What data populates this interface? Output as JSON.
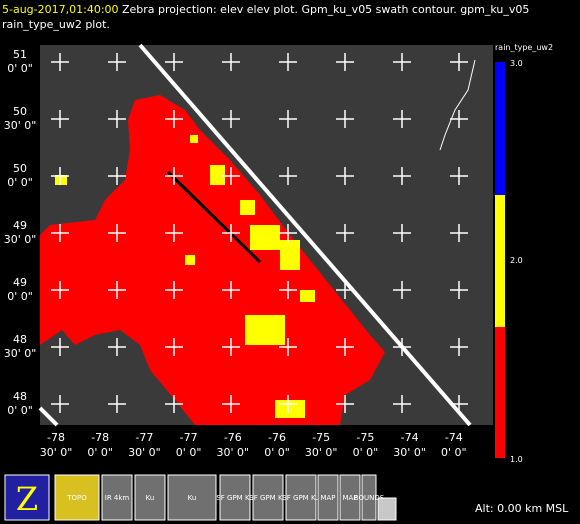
{
  "header": {
    "time": "5-aug-2017,01:40:00",
    "text": "Zebra projection: elev elev  plot.  Gpm_ku_v05 swath contour.  gpm_ku_v05",
    "line2": "rain_type_uw2  plot."
  },
  "map": {
    "lat_labels": [
      [
        "51",
        "0' 0\""
      ],
      [
        "50",
        "30' 0\""
      ],
      [
        "50",
        "0' 0\""
      ],
      [
        "49",
        "30' 0\""
      ],
      [
        "49",
        "0' 0\""
      ],
      [
        "48",
        "30' 0\""
      ],
      [
        "48",
        "0' 0\""
      ]
    ],
    "lon_labels": [
      [
        "-78",
        "30' 0\""
      ],
      [
        "-78",
        "0' 0\""
      ],
      [
        "-77",
        "30' 0\""
      ],
      [
        "-77",
        "0' 0\""
      ],
      [
        "-76",
        "30' 0\""
      ],
      [
        "-76",
        "0' 0\""
      ],
      [
        "-75",
        "30' 0\""
      ],
      [
        "-75",
        "0' 0\""
      ],
      [
        "-74",
        "30' 0\""
      ],
      [
        "-74",
        "0' 0\""
      ]
    ]
  },
  "colorbar": {
    "title": "rain_type_uw2",
    "labels": [
      "3.0",
      "2.0",
      "1.0"
    ]
  },
  "toolbar": [
    "Z",
    "TOPO",
    "IR 4km",
    "Ku",
    "Ku",
    "SF GPM Ku",
    "SF GPM Ku",
    "SF GPM Ku",
    "MAP",
    "MAP",
    "BOUNDS"
  ],
  "status": "Alt: 0.00 km MSL"
}
